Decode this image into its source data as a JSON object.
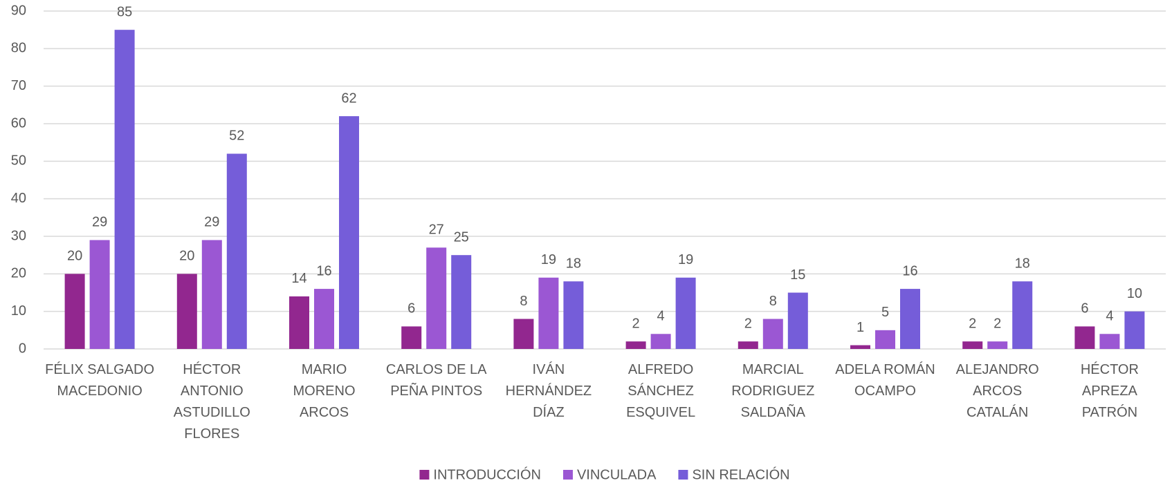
{
  "chart_data": {
    "type": "bar",
    "categories": [
      [
        "FÉLIX SALGADO",
        "MACEDONIO"
      ],
      [
        "HÉCTOR",
        "ANTONIO",
        "ASTUDILLO",
        "FLORES"
      ],
      [
        "MARIO",
        "MORENO",
        "ARCOS"
      ],
      [
        "CARLOS DE LA",
        "PEÑA PINTOS"
      ],
      [
        "IVÁN",
        "HERNÁNDEZ",
        "DÍAZ"
      ],
      [
        "ALFREDO",
        "SÁNCHEZ",
        "ESQUIVEL"
      ],
      [
        "MARCIAL",
        "RODRIGUEZ",
        "SALDAÑA"
      ],
      [
        "ADELA ROMÁN",
        "OCAMPO"
      ],
      [
        "ALEJANDRO",
        "ARCOS",
        "CATALÁN"
      ],
      [
        "HÉCTOR",
        "APREZA",
        "PATRÓN"
      ]
    ],
    "series": [
      {
        "name": "INTRODUCCIÓN",
        "color": "#92278f",
        "values": [
          20,
          20,
          14,
          6,
          8,
          2,
          2,
          1,
          2,
          6
        ]
      },
      {
        "name": "VINCULADA",
        "color": "#9b57d3",
        "values": [
          29,
          29,
          16,
          27,
          19,
          4,
          8,
          5,
          2,
          4
        ]
      },
      {
        "name": "SIN RELACIÓN",
        "color": "#755dd9",
        "values": [
          85,
          52,
          62,
          25,
          18,
          19,
          15,
          16,
          18,
          10
        ]
      }
    ],
    "ylim": [
      0,
      90
    ],
    "yticks": [
      0,
      10,
      20,
      30,
      40,
      50,
      60,
      70,
      80,
      90
    ],
    "grid": true,
    "legend": "bottom"
  }
}
